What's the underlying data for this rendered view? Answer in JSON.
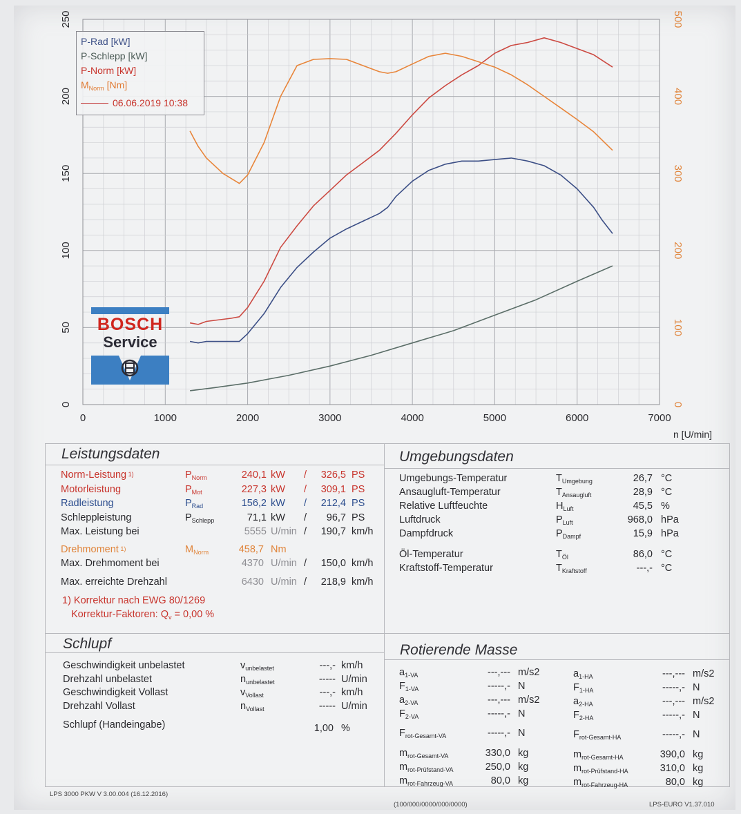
{
  "chart_data": {
    "type": "line",
    "xlabel": "n [U/min]",
    "x_ticks": [
      0,
      1000,
      2000,
      3000,
      4000,
      5000,
      6000,
      7000
    ],
    "y_left_ticks": [
      0,
      50,
      100,
      150,
      200,
      250
    ],
    "y_right_ticks": [
      0,
      100,
      200,
      300,
      400,
      500
    ],
    "xlim": [
      0,
      7000
    ],
    "ylim_left": [
      0,
      250
    ],
    "ylim_right": [
      0,
      500
    ],
    "grid": true,
    "legend_position": "top-left",
    "series": [
      {
        "name": "P-Rad [kW]",
        "axis": "left",
        "color": "#3c4f86",
        "points": [
          [
            1300,
            41
          ],
          [
            1400,
            40
          ],
          [
            1500,
            41
          ],
          [
            1800,
            41
          ],
          [
            1900,
            41
          ],
          [
            2000,
            46
          ],
          [
            2200,
            59
          ],
          [
            2400,
            76
          ],
          [
            2600,
            89
          ],
          [
            2800,
            99
          ],
          [
            3000,
            108
          ],
          [
            3200,
            114
          ],
          [
            3400,
            119
          ],
          [
            3600,
            124
          ],
          [
            3700,
            128
          ],
          [
            3800,
            135
          ],
          [
            4000,
            145
          ],
          [
            4200,
            152
          ],
          [
            4400,
            156
          ],
          [
            4600,
            158
          ],
          [
            4800,
            158
          ],
          [
            5000,
            159
          ],
          [
            5200,
            160
          ],
          [
            5400,
            158
          ],
          [
            5600,
            155
          ],
          [
            5800,
            149
          ],
          [
            6000,
            140
          ],
          [
            6200,
            128
          ],
          [
            6300,
            120
          ],
          [
            6430,
            111
          ]
        ]
      },
      {
        "name": "P-Schlepp [kW]",
        "axis": "left",
        "color": "#5b6e68",
        "points": [
          [
            1300,
            9
          ],
          [
            1600,
            11
          ],
          [
            2000,
            14
          ],
          [
            2500,
            19
          ],
          [
            3000,
            25
          ],
          [
            3500,
            32
          ],
          [
            4000,
            40
          ],
          [
            4500,
            48
          ],
          [
            5000,
            58
          ],
          [
            5500,
            68
          ],
          [
            6000,
            80
          ],
          [
            6430,
            90
          ]
        ]
      },
      {
        "name": "P-Norm [kW]",
        "axis": "left",
        "color": "#cc4a42",
        "points": [
          [
            1300,
            53
          ],
          [
            1400,
            52
          ],
          [
            1500,
            54
          ],
          [
            1800,
            56
          ],
          [
            1900,
            57
          ],
          [
            2000,
            63
          ],
          [
            2200,
            80
          ],
          [
            2400,
            102
          ],
          [
            2600,
            116
          ],
          [
            2800,
            129
          ],
          [
            3000,
            139
          ],
          [
            3200,
            149
          ],
          [
            3400,
            157
          ],
          [
            3600,
            165
          ],
          [
            3800,
            176
          ],
          [
            4000,
            188
          ],
          [
            4200,
            199
          ],
          [
            4400,
            207
          ],
          [
            4600,
            214
          ],
          [
            4800,
            220
          ],
          [
            5000,
            228
          ],
          [
            5200,
            233
          ],
          [
            5400,
            235
          ],
          [
            5600,
            238
          ],
          [
            5800,
            235
          ],
          [
            6000,
            231
          ],
          [
            6200,
            227
          ],
          [
            6430,
            219
          ]
        ]
      },
      {
        "name": "MNorm [Nm]",
        "axis": "right",
        "color": "#e8853a",
        "points": [
          [
            1300,
            355
          ],
          [
            1350,
            345
          ],
          [
            1400,
            335
          ],
          [
            1500,
            320
          ],
          [
            1700,
            300
          ],
          [
            1900,
            287
          ],
          [
            2000,
            298
          ],
          [
            2200,
            340
          ],
          [
            2400,
            400
          ],
          [
            2600,
            440
          ],
          [
            2800,
            448
          ],
          [
            3000,
            449
          ],
          [
            3200,
            448
          ],
          [
            3400,
            440
          ],
          [
            3600,
            432
          ],
          [
            3700,
            430
          ],
          [
            3800,
            432
          ],
          [
            4000,
            442
          ],
          [
            4200,
            452
          ],
          [
            4400,
            456
          ],
          [
            4600,
            452
          ],
          [
            4800,
            445
          ],
          [
            5000,
            438
          ],
          [
            5200,
            428
          ],
          [
            5400,
            415
          ],
          [
            5600,
            400
          ],
          [
            5800,
            385
          ],
          [
            6000,
            370
          ],
          [
            6200,
            354
          ],
          [
            6430,
            330
          ]
        ]
      }
    ]
  },
  "legend": {
    "p_rad": "P-Rad [kW]",
    "p_schlepp": "P-Schlepp [kW]",
    "p_norm": "P-Norm [kW]",
    "m_norm_main": "M",
    "m_norm_sub": "Norm",
    "m_norm_unit": "[Nm]",
    "date": "06.06.2019 10:38"
  },
  "logo": {
    "line1": "BOSCH",
    "line2": "Service",
    "colors": {
      "blue": "#3c7fc2",
      "red": "#d0261e"
    }
  },
  "leistungsdaten": {
    "title": "Leistungsdaten",
    "rows": [
      {
        "label": "Norm-Leistung",
        "mark": "1)",
        "sym": "P",
        "sub": "Norm",
        "v1": "240,1",
        "u1": "kW",
        "sep": "/",
        "v2": "326,5",
        "u2": "PS",
        "color": "red"
      },
      {
        "label": "Motorleistung",
        "mark": "",
        "sym": "P",
        "sub": "Mot",
        "v1": "227,3",
        "u1": "kW",
        "sep": "/",
        "v2": "309,1",
        "u2": "PS",
        "color": "red"
      },
      {
        "label": "Radleistung",
        "mark": "",
        "sym": "P",
        "sub": "Rad",
        "v1": "156,2",
        "u1": "kW",
        "sep": "/",
        "v2": "212,4",
        "u2": "PS",
        "color": "blue"
      },
      {
        "label": "Schleppleistung",
        "mark": "",
        "sym": "P",
        "sub": "Schlepp",
        "v1": "71,1",
        "u1": "kW",
        "sep": "/",
        "v2": "96,7",
        "u2": "PS",
        "color": "dark"
      },
      {
        "label": "Max. Leistung bei",
        "mark": "",
        "sym": "",
        "sub": "",
        "v1": "5555",
        "u1": "U/min",
        "sep": "/",
        "v2": "190,7",
        "u2": "km/h",
        "color": "dark"
      }
    ],
    "drehmoment": {
      "label": "Drehmoment",
      "mark": "1)",
      "sym": "M",
      "sub": "Norm",
      "v1": "458,7",
      "u1": "Nm"
    },
    "max_drehmoment": {
      "label": "Max. Drehmoment bei",
      "v1": "4370",
      "u1": "U/min",
      "sep": "/",
      "v2": "150,0",
      "u2": "km/h"
    },
    "max_drehzahl": {
      "label": "Max. erreichte Drehzahl",
      "v1": "6430",
      "u1": "U/min",
      "sep": "/",
      "v2": "218,9",
      "u2": "km/h"
    },
    "korrektur": "1) Korrektur nach EWG 80/1269",
    "korrektur_faktoren_label": "Korrektur-Faktoren: Q",
    "korrektur_faktoren_sub": "v",
    "korrektur_faktoren_value": "=    0,00 %"
  },
  "umgebungsdaten": {
    "title": "Umgebungsdaten",
    "rows": [
      {
        "label": "Umgebungs-Temperatur",
        "sym": "T",
        "sub": "Umgebung",
        "value": "26,7",
        "unit": "°C"
      },
      {
        "label": "Ansaugluft-Temperatur",
        "sym": "T",
        "sub": "Ansaugluft",
        "value": "28,9",
        "unit": "°C"
      },
      {
        "label": "Relative Luftfeuchte",
        "sym": "H",
        "sub": "Luft",
        "value": "45,5",
        "unit": "%"
      },
      {
        "label": "Luftdruck",
        "sym": "P",
        "sub": "Luft",
        "value": "968,0",
        "unit": "hPa"
      },
      {
        "label": "Dampfdruck",
        "sym": "P",
        "sub": "Dampf",
        "value": "15,9",
        "unit": "hPa"
      },
      {
        "label": "Öl-Temperatur",
        "sym": "T",
        "sub": "Öl",
        "value": "86,0",
        "unit": "°C"
      },
      {
        "label": "Kraftstoff-Temperatur",
        "sym": "T",
        "sub": "Kraftstoff",
        "value": "---,-",
        "unit": "°C"
      }
    ]
  },
  "schlupf": {
    "title": "Schlupf",
    "rows": [
      {
        "label": "Geschwindigkeit unbelastet",
        "sym": "v",
        "sub": "unbelastet",
        "value": "---,-",
        "unit": "km/h"
      },
      {
        "label": "Drehzahl unbelastet",
        "sym": "n",
        "sub": "unbelastet",
        "value": "-----",
        "unit": "U/min"
      },
      {
        "label": "Geschwindigkeit Vollast",
        "sym": "v",
        "sub": "Vollast",
        "value": "---,-",
        "unit": "km/h"
      },
      {
        "label": "Drehzahl Vollast",
        "sym": "n",
        "sub": "Vollast",
        "value": "-----",
        "unit": "U/min"
      }
    ],
    "hand": {
      "label": "Schlupf (Handeingabe)",
      "value": "1,00",
      "unit": "%"
    }
  },
  "rotierende_masse": {
    "title": "Rotierende Masse",
    "left": [
      {
        "sym": "a",
        "sub": "1-VA",
        "value": "---,---",
        "unit": "m/s2"
      },
      {
        "sym": "F",
        "sub": "1-VA",
        "value": "-----,-",
        "unit": "N"
      },
      {
        "sym": "a",
        "sub": "2-VA",
        "value": "---,---",
        "unit": "m/s2"
      },
      {
        "sym": "F",
        "sub": "2-VA",
        "value": "-----,-",
        "unit": "N"
      },
      {
        "sym": "F",
        "sub": "rot-Gesamt-VA",
        "value": "-----,-",
        "unit": "N"
      },
      {
        "sym": "m",
        "sub": "rot-Gesamt-VA",
        "value": "330,0",
        "unit": "kg"
      },
      {
        "sym": "m",
        "sub": "rot-Prüfstand-VA",
        "value": "250,0",
        "unit": "kg"
      },
      {
        "sym": "m",
        "sub": "rot-Fahrzeug-VA",
        "value": "80,0",
        "unit": "kg"
      }
    ],
    "right": [
      {
        "sym": "a",
        "sub": "1-HA",
        "value": "---,---",
        "unit": "m/s2"
      },
      {
        "sym": "F",
        "sub": "1-HA",
        "value": "-----,-",
        "unit": "N"
      },
      {
        "sym": "a",
        "sub": "2-HA",
        "value": "---,---",
        "unit": "m/s2"
      },
      {
        "sym": "F",
        "sub": "2-HA",
        "value": "-----,-",
        "unit": "N"
      },
      {
        "sym": "F",
        "sub": "rot-Gesamt-HA",
        "value": "-----,-",
        "unit": "N"
      },
      {
        "sym": "m",
        "sub": "rot-Gesamt-HA",
        "value": "390,0",
        "unit": "kg"
      },
      {
        "sym": "m",
        "sub": "rot-Prüfstand-HA",
        "value": "310,0",
        "unit": "kg"
      },
      {
        "sym": "m",
        "sub": "rot-Fahrzeug-HA",
        "value": "80,0",
        "unit": "kg"
      }
    ]
  },
  "footer": {
    "left": "LPS 3000 PKW V 3.00.004 (16.12.2016)",
    "center": "(100/000/0000/000/0000)",
    "right": "LPS-EURO V1.37.010"
  }
}
